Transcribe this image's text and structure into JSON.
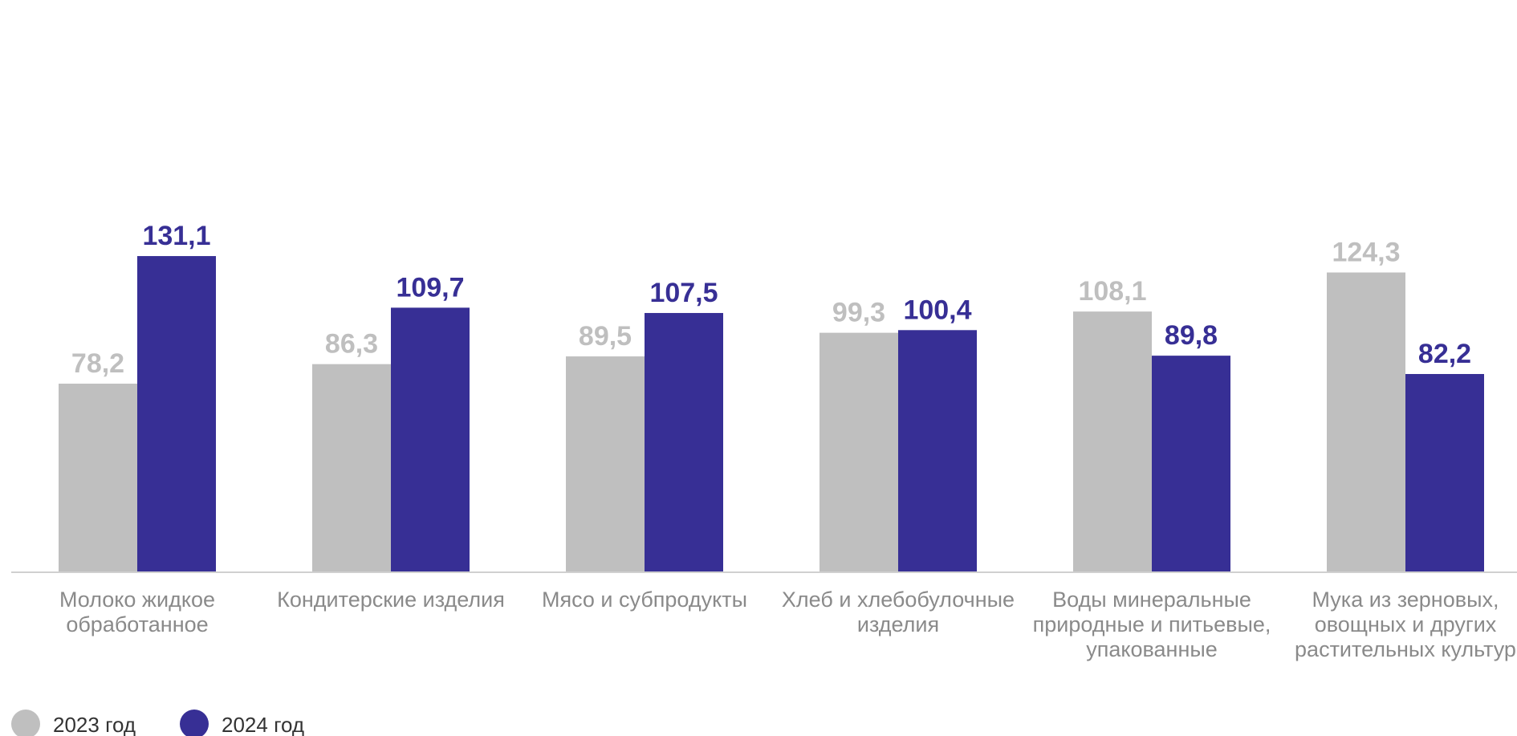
{
  "chart_data": {
    "type": "bar",
    "title": "",
    "xlabel": "",
    "ylabel": "",
    "ylim": [
      0,
      140
    ],
    "grid": false,
    "legend_position": "bottom-left",
    "categories": [
      [
        "Молоко жидкое",
        "обработанное"
      ],
      [
        "Кондитерские изделия"
      ],
      [
        "Мясо и субпродукты"
      ],
      [
        "Хлеб и хлебобулочные",
        "изделия"
      ],
      [
        "Воды минеральные",
        "природные и питьевые,",
        "упакованные"
      ],
      [
        "Мука из зерновых,",
        "овощных и других",
        "растительных культур"
      ]
    ],
    "series": [
      {
        "name": "2023 год",
        "color": "#bfbfbf",
        "values": [
          78.2,
          86.3,
          89.5,
          99.3,
          108.1,
          124.3
        ],
        "labels": [
          "78,2",
          "86,3",
          "89,5",
          "99,3",
          "108,1",
          "124,3"
        ]
      },
      {
        "name": "2024 год",
        "color": "#372f95",
        "values": [
          131.1,
          109.7,
          107.5,
          100.4,
          89.8,
          82.2
        ],
        "labels": [
          "131,1",
          "109,7",
          "107,5",
          "100,4",
          "89,8",
          "82,2"
        ]
      }
    ]
  }
}
